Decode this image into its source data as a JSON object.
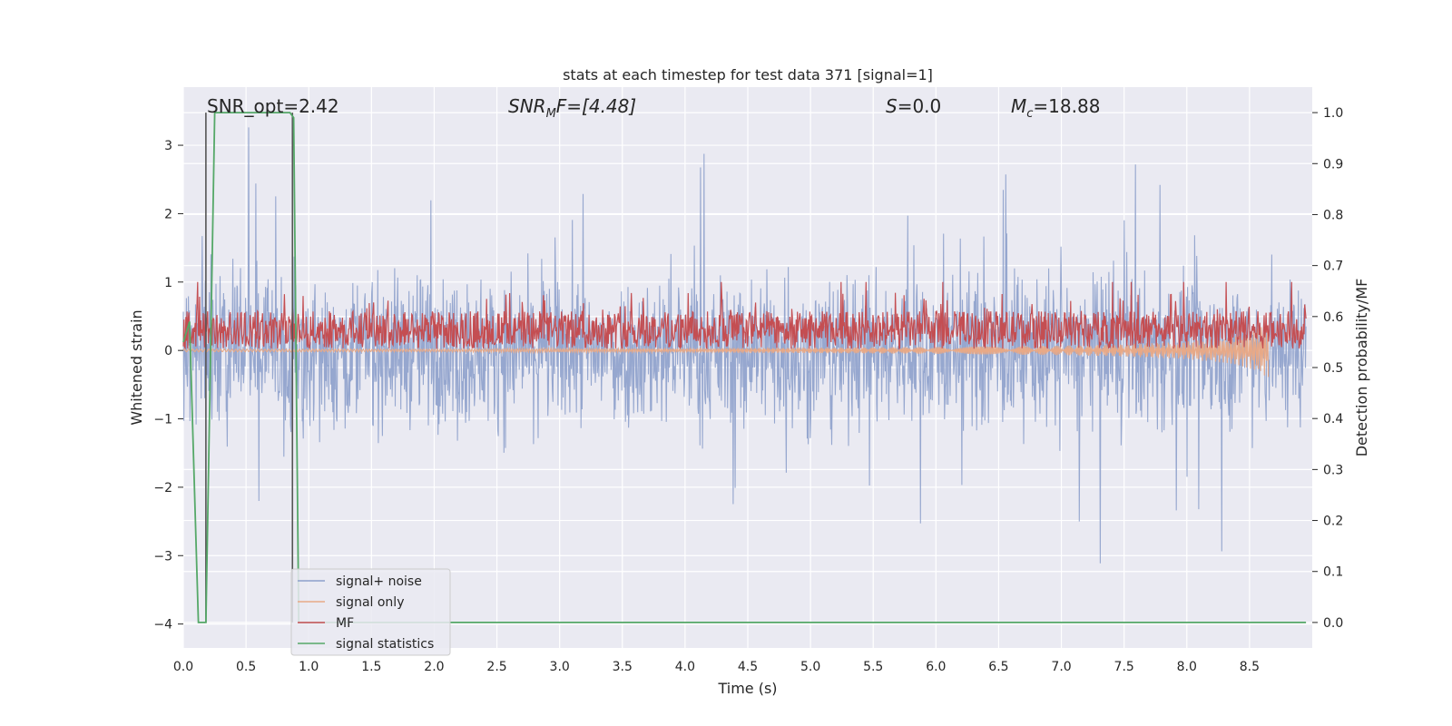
{
  "chart_data": {
    "type": "line",
    "title": "stats at each timestep for test data 371 [signal=1]",
    "xlabel": "Time (s)",
    "ylabel_left": "Whitened strain",
    "ylabel_right": "Detection probability/MF",
    "xlim": [
      0.0,
      9.0
    ],
    "ylim_left": [
      -4.35,
      3.85
    ],
    "ylim_right": [
      -0.05,
      1.05
    ],
    "x_ticks": [
      "0.0",
      "0.5",
      "1.0",
      "1.5",
      "2.0",
      "2.5",
      "3.0",
      "3.5",
      "4.0",
      "4.5",
      "5.0",
      "5.5",
      "6.0",
      "6.5",
      "7.0",
      "7.5",
      "8.0",
      "8.5"
    ],
    "y_ticks_left": [
      "3",
      "2",
      "1",
      "0",
      "−1",
      "−2",
      "−3",
      "−4"
    ],
    "y_ticks_right": [
      "1.0",
      "0.9",
      "0.8",
      "0.7",
      "0.6",
      "0.5",
      "0.4",
      "0.3",
      "0.2",
      "0.1",
      "0.0"
    ],
    "grid": true,
    "annotations": {
      "snr_opt": "SNR_opt=2.42",
      "snr_mf_base": "SNR",
      "snr_mf_sub": "M",
      "snr_mf_rest": "F=[4.48]",
      "s_var": "S",
      "s_rest": "=0.0",
      "mc_base": "M",
      "mc_sub": "c",
      "mc_rest": "=18.88"
    },
    "legend_position": "lower left",
    "series": [
      {
        "name": "signal+ noise",
        "color": "#8da0cb",
        "axis": "left",
        "description_range": [
          -4.0,
          3.5
        ],
        "typical_band": [
          -1.3,
          1.3
        ]
      },
      {
        "name": "signal only",
        "color": "#e8a987",
        "axis": "left",
        "x": [
          0.0,
          1.0,
          2.0,
          3.0,
          4.0,
          5.0,
          6.0,
          7.0,
          7.5,
          8.0,
          8.3,
          8.5,
          8.65
        ],
        "amplitude": [
          0.02,
          0.02,
          0.02,
          0.03,
          0.03,
          0.04,
          0.05,
          0.07,
          0.09,
          0.13,
          0.18,
          0.26,
          0.4
        ]
      },
      {
        "name": "MF",
        "color": "#c44e52",
        "axis": "left",
        "typical_range": [
          0.0,
          0.75
        ],
        "peak": 1.0
      },
      {
        "name": "signal statistics",
        "color": "#55a868",
        "axis": "right",
        "x": [
          0.0,
          0.05,
          0.12,
          0.18,
          0.25,
          0.85,
          0.88,
          0.92,
          8.95
        ],
        "y": [
          0.55,
          0.59,
          0.0,
          0.0,
          1.0,
          1.0,
          0.99,
          0.0,
          0.0
        ]
      }
    ],
    "vlines": [
      {
        "x": 0.18,
        "color": "#555555",
        "axis": "right",
        "y": [
          0.0,
          1.0
        ]
      },
      {
        "x": 0.87,
        "color": "#555555",
        "axis": "right",
        "y": [
          0.0,
          1.0
        ]
      }
    ]
  }
}
